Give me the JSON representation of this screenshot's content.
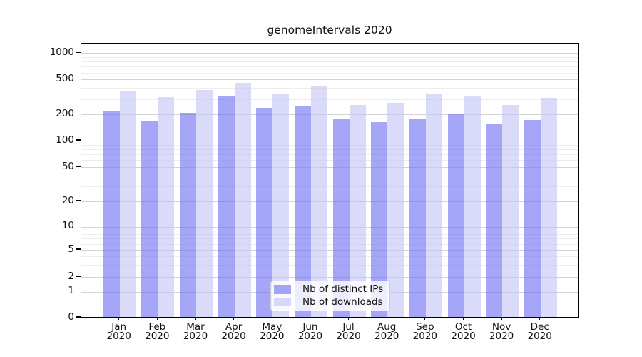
{
  "title": "genomeIntervals 2020",
  "chart_data": {
    "type": "bar",
    "title": "genomeIntervals 2020",
    "categories": [
      [
        "Jan",
        "2020"
      ],
      [
        "Feb",
        "2020"
      ],
      [
        "Mar",
        "2020"
      ],
      [
        "Apr",
        "2020"
      ],
      [
        "May",
        "2020"
      ],
      [
        "Jun",
        "2020"
      ],
      [
        "Jul",
        "2020"
      ],
      [
        "Aug",
        "2020"
      ],
      [
        "Sep",
        "2020"
      ],
      [
        "Oct",
        "2020"
      ],
      [
        "Nov",
        "2020"
      ],
      [
        "Dec",
        "2020"
      ]
    ],
    "series": [
      {
        "name": "Nb of distinct IPs",
        "color": "rgba(111,111,243,0.62)",
        "values": [
          210,
          165,
          205,
          320,
          232,
          242,
          170,
          158,
          170,
          200,
          151,
          168
        ]
      },
      {
        "name": "Nb of downloads",
        "color": "rgba(195,195,245,0.62)",
        "values": [
          365,
          305,
          370,
          445,
          330,
          408,
          250,
          262,
          335,
          313,
          250,
          300
        ]
      }
    ],
    "xlabel": "",
    "ylabel": "",
    "yscale": "symlog",
    "ylim": [
      0,
      1300
    ],
    "y_ticks": [
      0,
      1,
      2,
      5,
      10,
      20,
      50,
      100,
      200,
      500,
      1000
    ],
    "y_minor_gridlines": [
      3,
      4,
      6,
      7,
      8,
      9,
      30,
      40,
      60,
      70,
      80,
      90,
      300,
      400,
      600,
      700,
      800,
      900
    ],
    "grid": "on",
    "legend_position": "lower center"
  },
  "colors": {
    "bar_distinct_ips_on_white": "#a6a6f6",
    "bar_downloads_on_white": "#dadaf9",
    "major_grid": "#d3d3d3",
    "minor_grid": "#ededed",
    "axis": "#000000",
    "background": "#ffffff"
  }
}
